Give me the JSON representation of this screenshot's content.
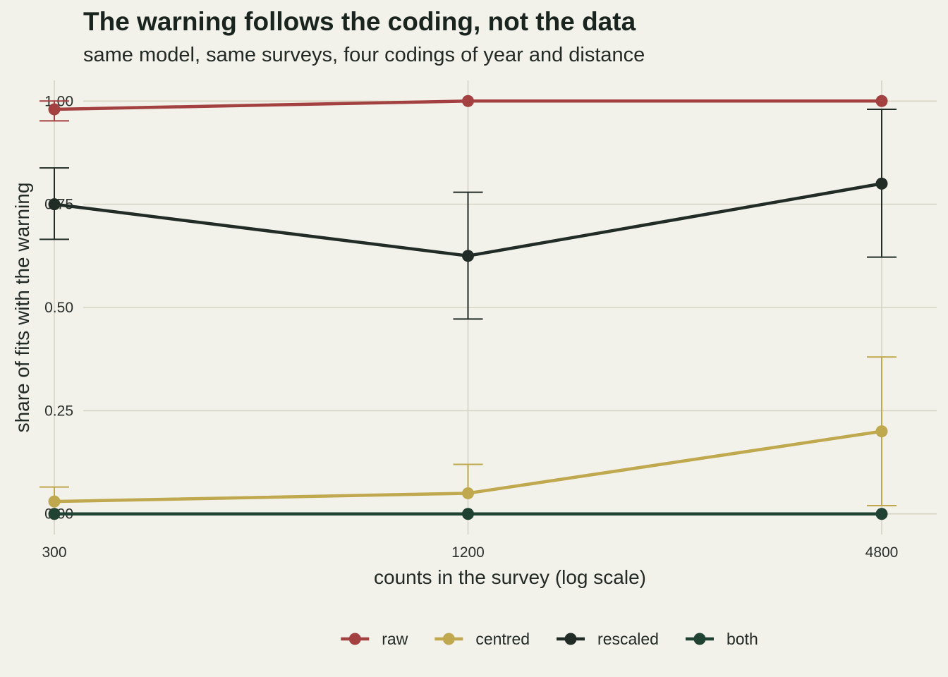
{
  "chart_data": {
    "type": "line",
    "title": "The warning follows the coding, not the data",
    "subtitle": "same model, same surveys, four codings of year and distance",
    "xlabel": "counts in the survey (log scale)",
    "ylabel": "share of fits with the warning",
    "x_scale": "log",
    "x": [
      300,
      1200,
      4800
    ],
    "x_tick_labels": [
      "300",
      "1200",
      "4800"
    ],
    "ylim": [
      -0.05,
      1.05
    ],
    "y_ticks": [
      0,
      0.25,
      0.5,
      0.75,
      1.0
    ],
    "y_tick_labels": [
      "0.00",
      "0.25",
      "0.50",
      "0.75",
      "1.00"
    ],
    "grid": true,
    "legend_position": "bottom",
    "series": [
      {
        "name": "raw",
        "color": "#a34040",
        "values": [
          0.98,
          1.0,
          1.0
        ],
        "lower": [
          0.952,
          null,
          null
        ],
        "upper": [
          1.0,
          null,
          null
        ]
      },
      {
        "name": "centred",
        "color": "#bfa84d",
        "values": [
          0.03,
          0.05,
          0.2
        ],
        "lower": [
          null,
          null,
          0.02
        ],
        "upper": [
          0.065,
          0.12,
          0.38
        ]
      },
      {
        "name": "rescaled",
        "color": "#212c26",
        "values": [
          0.75,
          0.625,
          0.8
        ],
        "lower": [
          0.665,
          0.472,
          0.622
        ],
        "upper": [
          0.838,
          0.779,
          0.98
        ]
      },
      {
        "name": "both",
        "color": "#1f4232",
        "values": [
          0.0,
          0.0,
          0.0
        ],
        "lower": [
          null,
          null,
          null
        ],
        "upper": [
          null,
          null,
          null
        ]
      }
    ]
  }
}
